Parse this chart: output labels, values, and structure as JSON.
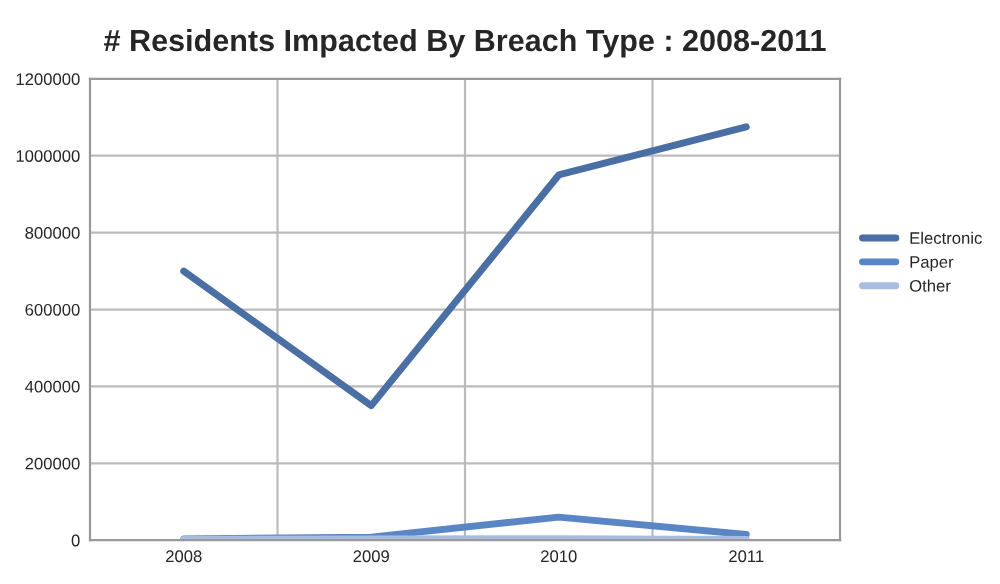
{
  "chart_data": {
    "type": "line",
    "title": "# Residents Impacted By Breach Type : 2008-2011",
    "categories": [
      "2008",
      "2009",
      "2010",
      "2011"
    ],
    "series": [
      {
        "name": "Electronic",
        "color": "#4a6fa5",
        "values": [
          700000,
          350000,
          950000,
          1075000
        ]
      },
      {
        "name": "Paper",
        "color": "#5b86c5",
        "values": [
          3000,
          8000,
          60000,
          15000
        ]
      },
      {
        "name": "Other",
        "color": "#a8bde0",
        "values": [
          2000,
          3000,
          4000,
          2000
        ]
      }
    ],
    "ylim": [
      0,
      1200000
    ],
    "yticks": [
      0,
      200000,
      400000,
      600000,
      800000,
      1000000,
      1200000
    ],
    "grid": true,
    "legend": "right",
    "marker": "none",
    "line_style": "solid"
  }
}
